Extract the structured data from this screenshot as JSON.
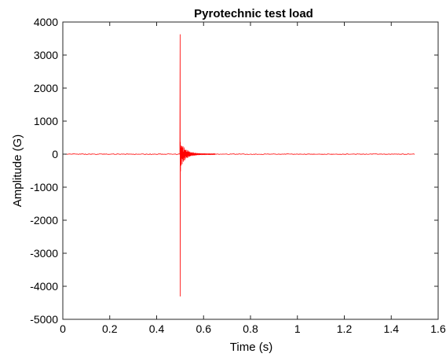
{
  "chart_data": {
    "type": "line",
    "title": "Pyrotechnic test load",
    "xlabel": "Time (s)",
    "ylabel": "Amplitude (G)",
    "xlim": [
      0,
      1.6
    ],
    "ylim": [
      -5000,
      4000
    ],
    "xticks": [
      0,
      0.2,
      0.4,
      0.6,
      0.8,
      1,
      1.2,
      1.4,
      1.6
    ],
    "xtick_labels": [
      "0",
      "0.2",
      "0.4",
      "0.6",
      "0.8",
      "1",
      "1.2",
      "1.4",
      "1.6"
    ],
    "yticks": [
      -5000,
      -4000,
      -3000,
      -2000,
      -1000,
      0,
      1000,
      2000,
      3000,
      4000
    ],
    "ytick_labels": [
      "-5000",
      "-4000",
      "-3000",
      "-2000",
      "-1000",
      "0",
      "1000",
      "2000",
      "3000",
      "4000"
    ],
    "grid": false,
    "legend": "none",
    "series": [
      {
        "color": "#ff0000",
        "signal": {
          "t_start": 0,
          "t_end": 1.5,
          "event_time": 0.5,
          "peak_max": 3620,
          "peak_min": -4300,
          "decay_until": 0.65
        }
      }
    ]
  }
}
